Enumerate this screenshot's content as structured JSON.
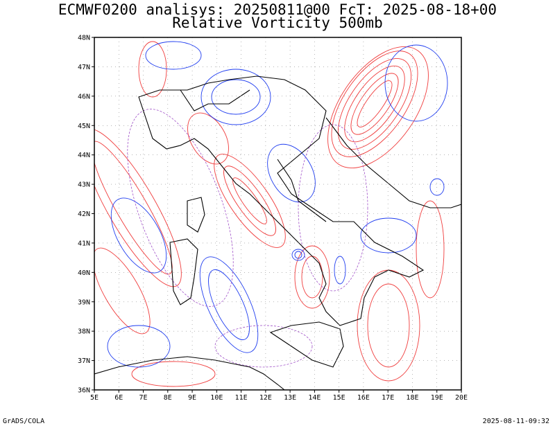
{
  "header": {
    "title_line1": "ECMWF0200 analisys: 20250811@00 FcT: 2025-08-18+00",
    "title_line2": "Relative Vorticity 500mb"
  },
  "map": {
    "lon_range": [
      5,
      20
    ],
    "lat_range": [
      36,
      48
    ],
    "lon_ticks": [
      "5E",
      "6E",
      "7E",
      "8E",
      "9E",
      "10E",
      "11E",
      "12E",
      "13E",
      "14E",
      "15E",
      "16E",
      "17E",
      "18E",
      "19E",
      "20E"
    ],
    "lat_ticks": [
      "36N",
      "37N",
      "38N",
      "39N",
      "40N",
      "41N",
      "42N",
      "43N",
      "44N",
      "45N",
      "46N",
      "47N",
      "48N"
    ],
    "colors": {
      "positive_contour": "#f03c3c",
      "negative_contour": "#1e3cf0",
      "zero_contour": "#a050c8",
      "coastline": "#000000",
      "grid": "#888888"
    }
  },
  "footer": {
    "left": "GrADS/COLA",
    "right": "2025-08-11-09:32"
  }
}
